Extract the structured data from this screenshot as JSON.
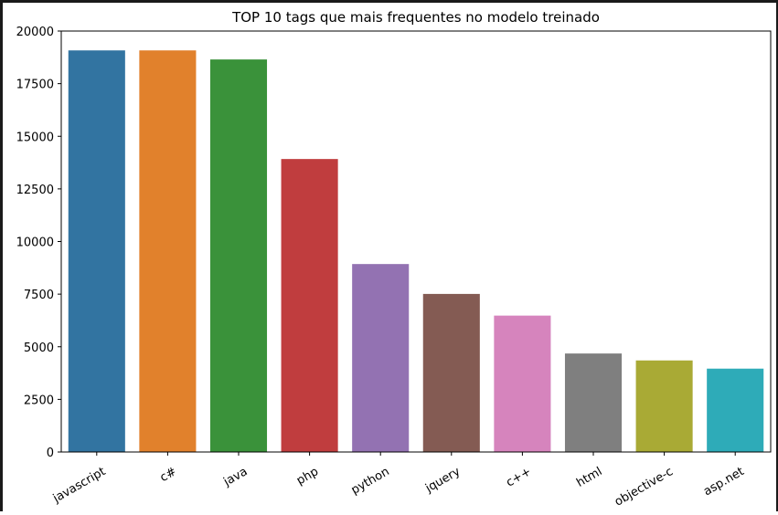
{
  "chart_data": {
    "type": "bar",
    "title": "TOP 10 tags que mais frequentes no modelo treinado",
    "xlabel": "",
    "ylabel": "",
    "categories": [
      "javascript",
      "c#",
      "java",
      "php",
      "python",
      "jquery",
      "c++",
      "html",
      "objective-c",
      "asp.net"
    ],
    "values": [
      19080,
      19080,
      18650,
      13920,
      8930,
      7510,
      6480,
      4680,
      4350,
      3960
    ],
    "colors": [
      "#3274a1",
      "#e1812c",
      "#3a923a",
      "#c03d3e",
      "#9372b2",
      "#845b53",
      "#d684bd",
      "#7f7f7f",
      "#a9aa35",
      "#2eabb8"
    ],
    "ylim": [
      0,
      20000
    ],
    "yticks": [
      "0",
      "2500",
      "5000",
      "7500",
      "10000",
      "12500",
      "15000",
      "17500",
      "20000"
    ],
    "ytick_values": [
      0,
      2500,
      5000,
      7500,
      10000,
      12500,
      15000,
      17500,
      20000
    ],
    "grid": false,
    "legend": "none"
  }
}
